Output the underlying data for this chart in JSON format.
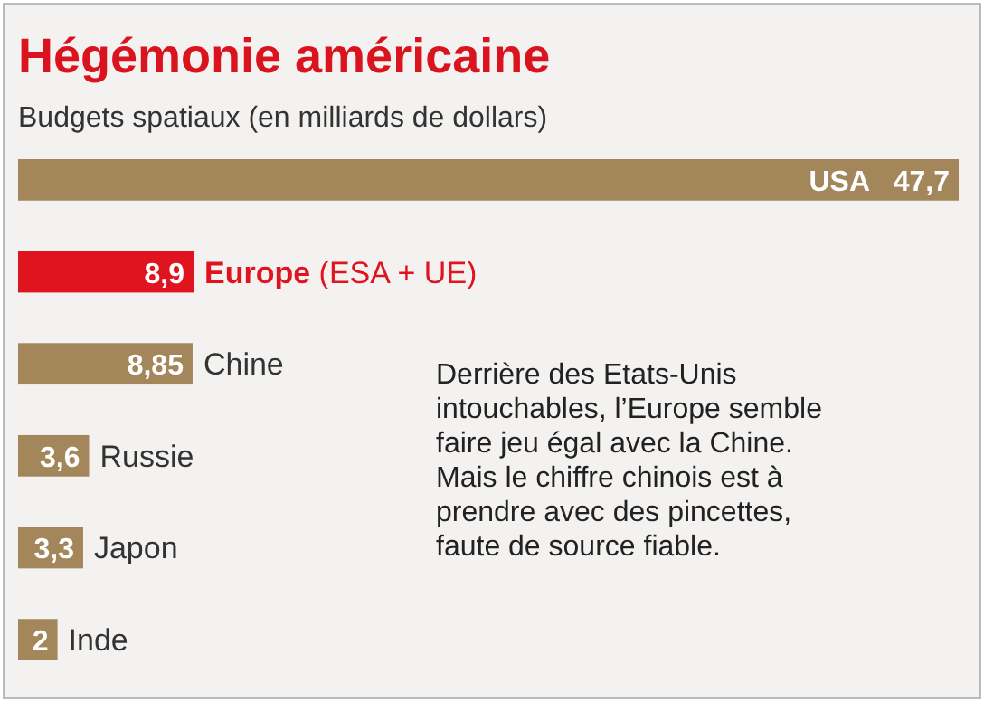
{
  "chart_data": {
    "type": "bar",
    "orientation": "horizontal",
    "title": "Hégémonie américaine",
    "subtitle": "Budgets spatiaux (en milliards de dollars)",
    "categories": [
      "USA",
      "Europe (ESA + UE)",
      "Chine",
      "Russie",
      "Japon",
      "Inde"
    ],
    "values": [
      47.7,
      8.9,
      8.85,
      3.6,
      3.3,
      2
    ],
    "value_labels": [
      "47,7",
      "8,9",
      "8,85",
      "3,6",
      "3,3",
      "2"
    ],
    "colors": [
      "#a3865a",
      "#e0141e",
      "#a3865a",
      "#a3865a",
      "#a3865a",
      "#a3865a"
    ],
    "annotations": [
      "Derrière des Etats-Unis intouchables, l’Europe semble faire jeu égal avec la Chine. Mais le chiffre chinois est à prendre avec des pincettes, faute de source fiable."
    ]
  }
}
